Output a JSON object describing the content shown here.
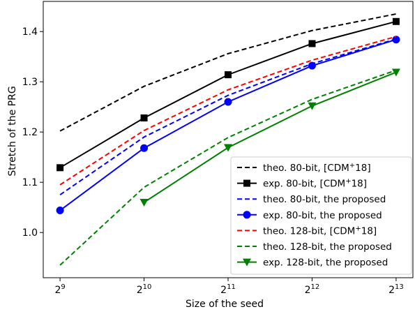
{
  "chart_data": {
    "type": "line",
    "xlabel": "Size of the seed",
    "ylabel": "Stretch of the PRG",
    "x": [
      9,
      10,
      11,
      12,
      13
    ],
    "x_tick_labels": [
      {
        "base": "2",
        "exp": "9"
      },
      {
        "base": "2",
        "exp": "10"
      },
      {
        "base": "2",
        "exp": "11"
      },
      {
        "base": "2",
        "exp": "12"
      },
      {
        "base": "2",
        "exp": "13"
      }
    ],
    "xlim": [
      8.8,
      13.2
    ],
    "ylim": [
      0.91,
      1.46
    ],
    "y_ticks": [
      {
        "value": 1.0,
        "label": "1.0"
      },
      {
        "value": 1.1,
        "label": "1.1"
      },
      {
        "value": 1.2,
        "label": "1.2"
      },
      {
        "value": 1.3,
        "label": "1.3"
      },
      {
        "value": 1.4,
        "label": "1.4"
      }
    ],
    "grid": false,
    "legend_position": "bottom-right",
    "series": [
      {
        "name": "theo. 80-bit, [CDM",
        "sup": "+",
        "name_tail": "18]",
        "color": "#000000",
        "dash": true,
        "marker": "none",
        "x": [
          9,
          10,
          11,
          12,
          13
        ],
        "values": [
          1.202,
          1.291,
          1.356,
          1.402,
          1.435
        ]
      },
      {
        "name": "exp. 80-bit, [CDM",
        "sup": "+",
        "name_tail": "18]",
        "color": "#000000",
        "dash": false,
        "marker": "square",
        "x": [
          9,
          10,
          11,
          12,
          13
        ],
        "values": [
          1.129,
          1.228,
          1.314,
          1.376,
          1.42
        ]
      },
      {
        "name": "theo. 80-bit, the proposed",
        "sup": "",
        "name_tail": "",
        "color": "#0000ff",
        "dash": true,
        "marker": "none",
        "x": [
          9,
          10,
          11,
          12,
          13
        ],
        "values": [
          1.075,
          1.19,
          1.273,
          1.336,
          1.385
        ]
      },
      {
        "name": "exp. 80-bit, the proposed",
        "sup": "",
        "name_tail": "",
        "color": "#0000ff",
        "dash": false,
        "marker": "circle",
        "x": [
          9,
          10,
          11,
          12,
          13
        ],
        "values": [
          1.044,
          1.168,
          1.26,
          1.332,
          1.384
        ]
      },
      {
        "name": "theo. 128-bit, [CDM",
        "sup": "+",
        "name_tail": "18]",
        "color": "#ff0000",
        "dash": true,
        "marker": "none",
        "x": [
          9,
          10,
          11,
          12,
          13
        ],
        "values": [
          1.095,
          1.203,
          1.284,
          1.343,
          1.39
        ]
      },
      {
        "name": "theo. 128-bit, the proposed",
        "sup": "",
        "name_tail": "",
        "color": "#008000",
        "dash": true,
        "marker": "none",
        "x": [
          9,
          10,
          11,
          12,
          13
        ],
        "values": [
          0.935,
          1.09,
          1.189,
          1.265,
          1.323
        ]
      },
      {
        "name": "exp. 128-bit, the proposed",
        "sup": "",
        "name_tail": "",
        "color": "#008000",
        "dash": false,
        "marker": "triangle-down",
        "x": [
          10,
          11,
          12,
          13
        ],
        "values": [
          1.06,
          1.169,
          1.252,
          1.319
        ]
      }
    ]
  }
}
